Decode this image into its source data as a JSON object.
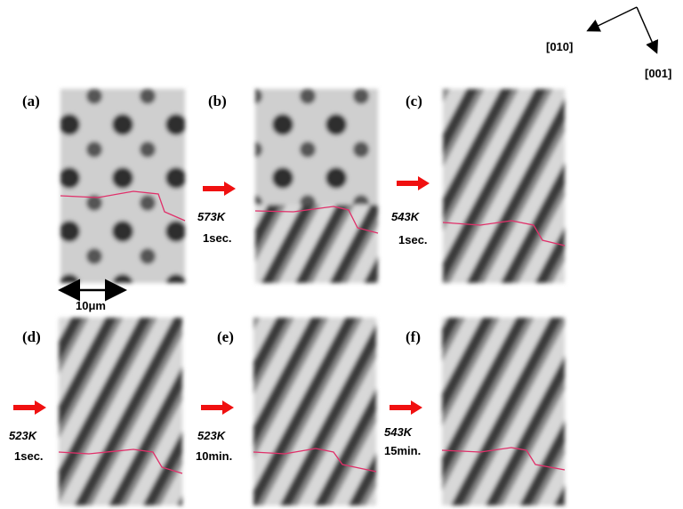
{
  "orientation": {
    "left": "[010]",
    "right": "[001]"
  },
  "scale_bar": "10μm",
  "panels": [
    {
      "label": "(a)"
    },
    {
      "label": "(b)",
      "temperature": "573K",
      "duration": "1sec."
    },
    {
      "label": "(c)",
      "temperature": "543K",
      "duration": "1sec."
    },
    {
      "label": "(d)",
      "temperature": "523K",
      "duration": "1sec."
    },
    {
      "label": "(e)",
      "temperature": "523K",
      "duration": "10min."
    },
    {
      "label": "(f)",
      "temperature": "543K",
      "duration": "15min."
    }
  ]
}
